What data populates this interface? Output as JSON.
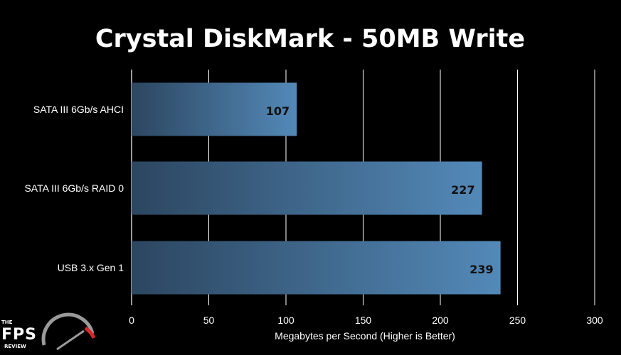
{
  "chart_data": {
    "type": "bar",
    "orientation": "horizontal",
    "title": "Crystal DiskMark - 50MB Write",
    "xlabel": "Megabytes per Second (Higher is Better)",
    "ylabel": "",
    "categories": [
      "SATA III 6Gb/s AHCI",
      "SATA III 6Gb/s RAID 0",
      "USB 3.x Gen 1"
    ],
    "values": [
      107,
      227,
      239
    ],
    "xlim": [
      0,
      300
    ],
    "xticks": [
      0,
      50,
      100,
      150,
      200,
      250,
      300
    ],
    "grid": true,
    "legend": "none",
    "colors": {
      "background": "#000000",
      "bar_dark": "#2c4660",
      "bar_light": "#5389b8",
      "grid": "#ffffff",
      "text": "#ffffff",
      "data_label": "#111111"
    }
  },
  "logo": {
    "small_text": "THE",
    "big_text": "FPS",
    "sub_text": "REVIEW",
    "accent": "#d9262b"
  }
}
